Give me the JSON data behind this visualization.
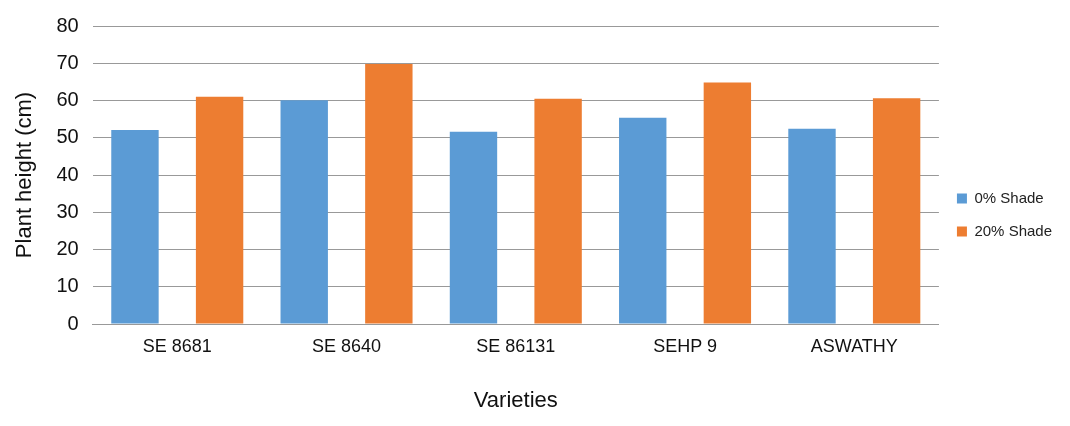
{
  "chart_data": {
    "type": "bar",
    "xlabel": "Varieties",
    "ylabel": "Plant height (cm)",
    "categories": [
      "SE 8681",
      "SE 8640",
      "SE 86131",
      "SEHP 9",
      "ASWATHY"
    ],
    "series": [
      {
        "name": "0% Shade",
        "color": "#5b9bd5",
        "values": [
          52.1,
          60.1,
          51.6,
          55.4,
          52.4
        ]
      },
      {
        "name": "20% Shade",
        "color": "#ed7d31",
        "values": [
          61,
          69.8,
          60.5,
          64.8,
          60.6
        ]
      }
    ],
    "ylim": [
      0,
      80
    ],
    "yticks": [
      0,
      10,
      20,
      30,
      40,
      50,
      60,
      70,
      80
    ],
    "grid": "y",
    "legend": "right"
  }
}
